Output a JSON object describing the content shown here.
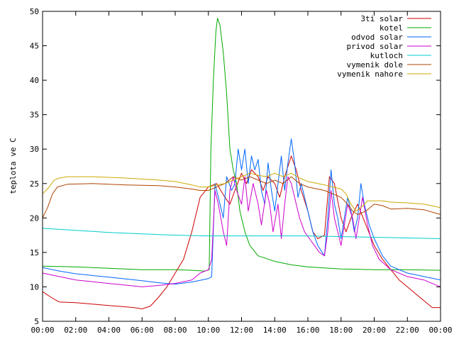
{
  "chart_data": {
    "type": "line",
    "title": "",
    "xlabel": "",
    "ylabel": "teplota ve C",
    "xlim": [
      0,
      24
    ],
    "ylim": [
      5,
      50
    ],
    "grid": false,
    "legend_position": "top-right",
    "x_ticks": [
      0,
      2,
      4,
      6,
      8,
      10,
      12,
      14,
      16,
      18,
      20,
      22,
      24
    ],
    "x_tick_labels": [
      "00:00",
      "02:00",
      "04:00",
      "06:00",
      "08:00",
      "10:00",
      "12:00",
      "14:00",
      "16:00",
      "18:00",
      "20:00",
      "22:00",
      "00:00"
    ],
    "y_ticks": [
      5,
      10,
      15,
      20,
      25,
      30,
      35,
      40,
      45,
      50
    ],
    "y_tick_labels": [
      "5",
      "10",
      "15",
      "20",
      "25",
      "30",
      "35",
      "40",
      "45",
      "50"
    ],
    "series": [
      {
        "name": "3ti solar",
        "color": "#cc0000",
        "points": [
          [
            0,
            9.3
          ],
          [
            0.5,
            8.5
          ],
          [
            1,
            7.8
          ],
          [
            2,
            7.7
          ],
          [
            3,
            7.5
          ],
          [
            4,
            7.3
          ],
          [
            5,
            7.1
          ],
          [
            5.5,
            7.0
          ],
          [
            6,
            6.8
          ],
          [
            6.5,
            7.2
          ],
          [
            7,
            8.5
          ],
          [
            7.5,
            10
          ],
          [
            8,
            12
          ],
          [
            8.5,
            14
          ],
          [
            9,
            18
          ],
          [
            9.5,
            23
          ],
          [
            10,
            24.5
          ],
          [
            10.5,
            25
          ],
          [
            11,
            23
          ],
          [
            11.3,
            22
          ],
          [
            11.6,
            24
          ],
          [
            12,
            26.5
          ],
          [
            12.3,
            25
          ],
          [
            12.6,
            27
          ],
          [
            13,
            26
          ],
          [
            13.3,
            24
          ],
          [
            13.6,
            26
          ],
          [
            14,
            25
          ],
          [
            14.3,
            23
          ],
          [
            14.6,
            26
          ],
          [
            15,
            29
          ],
          [
            15.3,
            27
          ],
          [
            15.6,
            24
          ],
          [
            16,
            21
          ],
          [
            16.3,
            18
          ],
          [
            16.6,
            17
          ],
          [
            17,
            17.5
          ],
          [
            17.3,
            26
          ],
          [
            17.6,
            25
          ],
          [
            18,
            20
          ],
          [
            18.3,
            18
          ],
          [
            18.6,
            20
          ],
          [
            19,
            22
          ],
          [
            19.5,
            19
          ],
          [
            20,
            16
          ],
          [
            20.5,
            14
          ],
          [
            21,
            12.5
          ],
          [
            21.5,
            11
          ],
          [
            22,
            10
          ],
          [
            22.5,
            9
          ],
          [
            23,
            8
          ],
          [
            23.5,
            7
          ],
          [
            24,
            7
          ]
        ]
      },
      {
        "name": "kotel",
        "color": "#00aa00",
        "points": [
          [
            0,
            13
          ],
          [
            2,
            12.9
          ],
          [
            4,
            12.7
          ],
          [
            6,
            12.5
          ],
          [
            8,
            12.5
          ],
          [
            9,
            12.4
          ],
          [
            9.8,
            12.3
          ],
          [
            10.05,
            12.5
          ],
          [
            10.15,
            30
          ],
          [
            10.3,
            40
          ],
          [
            10.45,
            47
          ],
          [
            10.55,
            49
          ],
          [
            10.7,
            48
          ],
          [
            10.9,
            44
          ],
          [
            11.1,
            38
          ],
          [
            11.3,
            30
          ],
          [
            11.5,
            27
          ],
          [
            11.7,
            25
          ],
          [
            11.9,
            21
          ],
          [
            12.2,
            18
          ],
          [
            12.5,
            16
          ],
          [
            13,
            14.5
          ],
          [
            14,
            13.7
          ],
          [
            15,
            13.2
          ],
          [
            16,
            12.9
          ],
          [
            18,
            12.6
          ],
          [
            20,
            12.5
          ],
          [
            22,
            12.5
          ],
          [
            24,
            12.4
          ]
        ]
      },
      {
        "name": "odvod solar",
        "color": "#0066ff",
        "points": [
          [
            0,
            12.8
          ],
          [
            1,
            12.3
          ],
          [
            2,
            11.9
          ],
          [
            4,
            11.4
          ],
          [
            6,
            10.9
          ],
          [
            7,
            10.6
          ],
          [
            8,
            10.4
          ],
          [
            9,
            10.7
          ],
          [
            9.6,
            11
          ],
          [
            10,
            11.2
          ],
          [
            10.2,
            11.5
          ],
          [
            10.4,
            25
          ],
          [
            10.6,
            23
          ],
          [
            10.9,
            20
          ],
          [
            11.1,
            26
          ],
          [
            11.4,
            24
          ],
          [
            11.6,
            25
          ],
          [
            11.8,
            30
          ],
          [
            12,
            27
          ],
          [
            12.2,
            30
          ],
          [
            12.4,
            25
          ],
          [
            12.6,
            29
          ],
          [
            12.8,
            27
          ],
          [
            13,
            28.5
          ],
          [
            13.2,
            24
          ],
          [
            13.4,
            22
          ],
          [
            13.6,
            28
          ],
          [
            13.8,
            24
          ],
          [
            14,
            21
          ],
          [
            14.2,
            25
          ],
          [
            14.4,
            29
          ],
          [
            14.6,
            24
          ],
          [
            14.8,
            28
          ],
          [
            15,
            31.5
          ],
          [
            15.2,
            28
          ],
          [
            15.4,
            23
          ],
          [
            15.6,
            25
          ],
          [
            16,
            21
          ],
          [
            16.3,
            18
          ],
          [
            16.6,
            16
          ],
          [
            17,
            14.5
          ],
          [
            17.2,
            20
          ],
          [
            17.4,
            27
          ],
          [
            17.6,
            22
          ],
          [
            17.8,
            20
          ],
          [
            18,
            17
          ],
          [
            18.2,
            20
          ],
          [
            18.4,
            23
          ],
          [
            18.6,
            21
          ],
          [
            18.8,
            18
          ],
          [
            19,
            20
          ],
          [
            19.2,
            25
          ],
          [
            19.4,
            22
          ],
          [
            19.7,
            19
          ],
          [
            20,
            17
          ],
          [
            20.5,
            14.5
          ],
          [
            21,
            13
          ],
          [
            22,
            12
          ],
          [
            23,
            11.5
          ],
          [
            24,
            11
          ]
        ]
      },
      {
        "name": "privod solar",
        "color": "#cc00cc",
        "points": [
          [
            0,
            12
          ],
          [
            1,
            11.5
          ],
          [
            2,
            11
          ],
          [
            4,
            10.5
          ],
          [
            6,
            10
          ],
          [
            7,
            10.2
          ],
          [
            8,
            10.5
          ],
          [
            9,
            11
          ],
          [
            9.5,
            12
          ],
          [
            10,
            12.5
          ],
          [
            10.2,
            14
          ],
          [
            10.4,
            24
          ],
          [
            10.6,
            22
          ],
          [
            10.9,
            18
          ],
          [
            11.1,
            16
          ],
          [
            11.3,
            24
          ],
          [
            11.5,
            26
          ],
          [
            11.7,
            24
          ],
          [
            12,
            22
          ],
          [
            12.2,
            26
          ],
          [
            12.4,
            21
          ],
          [
            12.7,
            25
          ],
          [
            13,
            22
          ],
          [
            13.2,
            19
          ],
          [
            13.5,
            24
          ],
          [
            13.7,
            22
          ],
          [
            13.9,
            18
          ],
          [
            14.2,
            22
          ],
          [
            14.4,
            17
          ],
          [
            14.6,
            22
          ],
          [
            14.8,
            26
          ],
          [
            15,
            25
          ],
          [
            15.3,
            22
          ],
          [
            15.5,
            20
          ],
          [
            15.8,
            18
          ],
          [
            16.1,
            17
          ],
          [
            16.4,
            16
          ],
          [
            16.7,
            15
          ],
          [
            17,
            14.5
          ],
          [
            17.2,
            18
          ],
          [
            17.4,
            24
          ],
          [
            17.6,
            20
          ],
          [
            17.8,
            18
          ],
          [
            18,
            16
          ],
          [
            18.2,
            19
          ],
          [
            18.4,
            22
          ],
          [
            18.7,
            20
          ],
          [
            18.9,
            17
          ],
          [
            19.1,
            20
          ],
          [
            19.3,
            23
          ],
          [
            19.6,
            19
          ],
          [
            19.9,
            16
          ],
          [
            20.3,
            14
          ],
          [
            21,
            12.5
          ],
          [
            22,
            11.5
          ],
          [
            23,
            11
          ],
          [
            24,
            10
          ]
        ]
      },
      {
        "name": "kutloch",
        "color": "#00cccc",
        "points": [
          [
            0,
            18.5
          ],
          [
            2,
            18.2
          ],
          [
            4,
            17.9
          ],
          [
            6,
            17.7
          ],
          [
            8,
            17.5
          ],
          [
            10,
            17.4
          ],
          [
            12,
            17.4
          ],
          [
            14,
            17.4
          ],
          [
            16,
            17.4
          ],
          [
            18,
            17.3
          ],
          [
            20,
            17.2
          ],
          [
            22,
            17.1
          ],
          [
            24,
            17
          ]
        ]
      },
      {
        "name": "vymenik dole",
        "color": "#b04400",
        "points": [
          [
            0,
            20
          ],
          [
            0.3,
            21.5
          ],
          [
            0.6,
            23.5
          ],
          [
            0.9,
            24.5
          ],
          [
            1.5,
            24.9
          ],
          [
            3,
            25
          ],
          [
            5,
            24.8
          ],
          [
            7,
            24.7
          ],
          [
            8,
            24.5
          ],
          [
            9,
            24.2
          ],
          [
            9.5,
            24
          ],
          [
            10,
            24
          ],
          [
            10.5,
            24.5
          ],
          [
            11,
            25
          ],
          [
            11.5,
            26
          ],
          [
            12,
            25.5
          ],
          [
            12.5,
            26
          ],
          [
            13,
            25.5
          ],
          [
            13.5,
            25
          ],
          [
            14,
            25.5
          ],
          [
            14.5,
            25
          ],
          [
            15,
            26
          ],
          [
            15.5,
            25
          ],
          [
            16,
            24.5
          ],
          [
            17,
            24
          ],
          [
            17.5,
            23.5
          ],
          [
            18,
            23
          ],
          [
            18.4,
            22
          ],
          [
            18.7,
            21
          ],
          [
            19,
            20.5
          ],
          [
            19.5,
            21
          ],
          [
            20,
            22
          ],
          [
            20.5,
            21.8
          ],
          [
            21,
            21.3
          ],
          [
            22,
            21.4
          ],
          [
            23,
            21.2
          ],
          [
            24,
            20.5
          ]
        ]
      },
      {
        "name": "vymenik nahore",
        "color": "#ccaa00",
        "points": [
          [
            0,
            23.5
          ],
          [
            0.4,
            24.5
          ],
          [
            0.7,
            25.5
          ],
          [
            1,
            25.8
          ],
          [
            1.5,
            26
          ],
          [
            3,
            26
          ],
          [
            5,
            25.8
          ],
          [
            7,
            25.5
          ],
          [
            8,
            25.3
          ],
          [
            9,
            24.8
          ],
          [
            9.5,
            24.5
          ],
          [
            10,
            24.5
          ],
          [
            10.5,
            24.8
          ],
          [
            11,
            25
          ],
          [
            11.5,
            25.5
          ],
          [
            12,
            26
          ],
          [
            12.5,
            26.5
          ],
          [
            13,
            26.2
          ],
          [
            13.5,
            26
          ],
          [
            14,
            26.5
          ],
          [
            14.5,
            26
          ],
          [
            15,
            26.5
          ],
          [
            15.5,
            25.8
          ],
          [
            16,
            25.3
          ],
          [
            17,
            24.8
          ],
          [
            17.5,
            24.5
          ],
          [
            18,
            24.2
          ],
          [
            18.3,
            23.5
          ],
          [
            18.6,
            22
          ],
          [
            18.9,
            21
          ],
          [
            19.2,
            21.5
          ],
          [
            19.6,
            22.5
          ],
          [
            20,
            22.5
          ],
          [
            20.5,
            22.5
          ],
          [
            21,
            22.3
          ],
          [
            22,
            22.2
          ],
          [
            23,
            22
          ],
          [
            24,
            21.5
          ]
        ]
      }
    ]
  }
}
